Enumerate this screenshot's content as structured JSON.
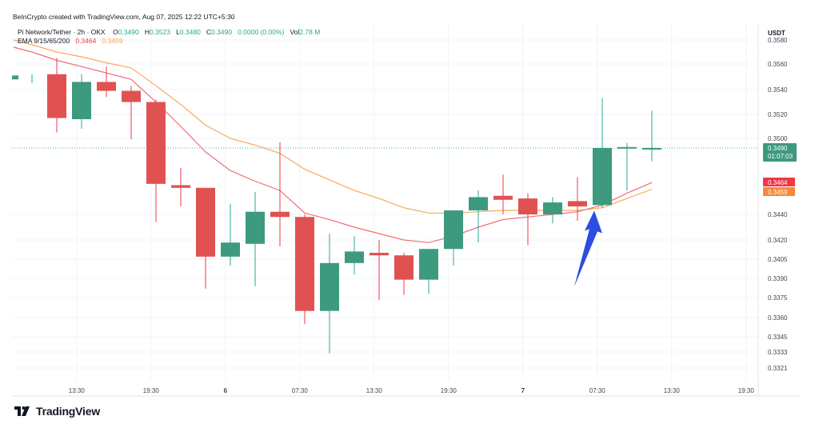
{
  "credit": "BeInCrypto created with TradingView.com, Aug 07, 2025 12:22 UTC+5:30",
  "legend": {
    "symbol": "Pi Network/Tether · 2h · OKX",
    "o_label": "O",
    "o_value": "0.3490",
    "h_label": "H",
    "h_value": "0.3523",
    "l_label": "L",
    "l_value": "0.3480",
    "c_label": "C",
    "c_value": "0.3490",
    "change": "0.0000 (0.00%)",
    "vol_label": "Vol",
    "vol_value": "2.78 M",
    "ema_label": "EMA 9/15/65/200",
    "ema_fast_value": "0.3464",
    "ema_slow_value": "0.3459"
  },
  "brand": {
    "logo": "tradingview-logo",
    "name": "TradingView"
  },
  "colors": {
    "up": "#22ab94",
    "down": "#f23645",
    "up_body": "#3d9a7e",
    "down_body": "#e05252",
    "ema_fast": "#f06d75",
    "ema_slow": "#f7a95c",
    "annotation_arrow": "#2b4de0",
    "grid": "#f0f3fa"
  },
  "chart_data": {
    "type": "candlestick",
    "currency": "USDT",
    "price_axis_ticks": [
      "0.3580",
      "0.3560",
      "0.3540",
      "0.3520",
      "0.3500",
      "0.3490",
      "0.3440",
      "0.3420",
      "0.3405",
      "0.3390",
      "0.3375",
      "0.3360",
      "0.3345",
      "0.3333",
      "0.3321"
    ],
    "price_ticks_y_values": [
      0.358,
      0.356,
      0.354,
      0.352,
      0.35,
      0.349,
      0.344,
      0.342,
      0.3405,
      0.339,
      0.3375,
      0.336,
      0.3345,
      0.3333,
      0.3321
    ],
    "time_axis_ticks": [
      "13:30",
      "19:30",
      "6",
      "07:30",
      "13:30",
      "19:30",
      "7",
      "07:30",
      "13:30",
      "19:30"
    ],
    "time_ticks_index": [
      1.8,
      4.8,
      7.8,
      10.8,
      13.8,
      16.8,
      19.8,
      22.8,
      25.8,
      28.8
    ],
    "current_price": {
      "value": 0.349,
      "label": "0.3490",
      "countdown": "01:07:03"
    },
    "ema_markers": [
      {
        "name": "EMA 9",
        "value": 0.3464,
        "label": "0.3464"
      },
      {
        "name": "EMA 15",
        "value": 0.3459,
        "label": "0.3459"
      }
    ],
    "candles": [
      {
        "o": 0.3548,
        "h": 0.3552,
        "l": 0.3545,
        "c": 0.3551
      },
      {
        "o": 0.3552,
        "h": 0.3565,
        "l": 0.3505,
        "c": 0.3517
      },
      {
        "o": 0.3516,
        "h": 0.3552,
        "l": 0.3508,
        "c": 0.3546
      },
      {
        "o": 0.3546,
        "h": 0.3558,
        "l": 0.3534,
        "c": 0.3539
      },
      {
        "o": 0.3539,
        "h": 0.3543,
        "l": 0.3499,
        "c": 0.353
      },
      {
        "o": 0.353,
        "h": 0.3532,
        "l": 0.3434,
        "c": 0.3463
      },
      {
        "o": 0.3462,
        "h": 0.3475,
        "l": 0.3446,
        "c": 0.346
      },
      {
        "o": 0.346,
        "h": 0.346,
        "l": 0.3382,
        "c": 0.3407
      },
      {
        "o": 0.3407,
        "h": 0.3448,
        "l": 0.34,
        "c": 0.3418
      },
      {
        "o": 0.3417,
        "h": 0.3457,
        "l": 0.3384,
        "c": 0.3442
      },
      {
        "o": 0.3442,
        "h": 0.3496,
        "l": 0.3415,
        "c": 0.3438
      },
      {
        "o": 0.3438,
        "h": 0.344,
        "l": 0.3355,
        "c": 0.3365
      },
      {
        "o": 0.3365,
        "h": 0.3425,
        "l": 0.3332,
        "c": 0.3402
      },
      {
        "o": 0.3402,
        "h": 0.3423,
        "l": 0.3393,
        "c": 0.3411
      },
      {
        "o": 0.341,
        "h": 0.342,
        "l": 0.3373,
        "c": 0.3408
      },
      {
        "o": 0.3408,
        "h": 0.341,
        "l": 0.3377,
        "c": 0.3389
      },
      {
        "o": 0.3389,
        "h": 0.3412,
        "l": 0.3378,
        "c": 0.3413
      },
      {
        "o": 0.3413,
        "h": 0.3443,
        "l": 0.34,
        "c": 0.3443
      },
      {
        "o": 0.3443,
        "h": 0.3458,
        "l": 0.3418,
        "c": 0.3453
      },
      {
        "o": 0.3454,
        "h": 0.347,
        "l": 0.344,
        "c": 0.3451
      },
      {
        "o": 0.3452,
        "h": 0.3456,
        "l": 0.3416,
        "c": 0.344
      },
      {
        "o": 0.344,
        "h": 0.3453,
        "l": 0.3433,
        "c": 0.3449
      },
      {
        "o": 0.345,
        "h": 0.3468,
        "l": 0.3435,
        "c": 0.3446
      },
      {
        "o": 0.3447,
        "h": 0.3533,
        "l": 0.3445,
        "c": 0.349
      },
      {
        "o": 0.349,
        "h": 0.3495,
        "l": 0.3458,
        "c": 0.3491
      },
      {
        "o": 0.349,
        "h": 0.3523,
        "l": 0.348,
        "c": 0.349
      }
    ],
    "ema_fast": [
      0.357,
      0.3563,
      0.3558,
      0.3553,
      0.3548,
      0.353,
      0.351,
      0.3487,
      0.3473,
      0.3465,
      0.3458,
      0.3441,
      0.3436,
      0.343,
      0.3425,
      0.342,
      0.3418,
      0.3423,
      0.343,
      0.3436,
      0.3438,
      0.344,
      0.3442,
      0.3447,
      0.3456,
      0.3464
    ],
    "ema_slow": [
      0.3576,
      0.357,
      0.3566,
      0.3561,
      0.3557,
      0.3543,
      0.3528,
      0.3511,
      0.35,
      0.3493,
      0.3486,
      0.3474,
      0.3466,
      0.3458,
      0.3452,
      0.3445,
      0.3441,
      0.3441,
      0.3442,
      0.3443,
      0.3443,
      0.3443,
      0.3443,
      0.3445,
      0.3452,
      0.3459
    ],
    "annotation": {
      "type": "arrow",
      "candle_index": 23,
      "price": 0.345
    },
    "grid": true
  }
}
